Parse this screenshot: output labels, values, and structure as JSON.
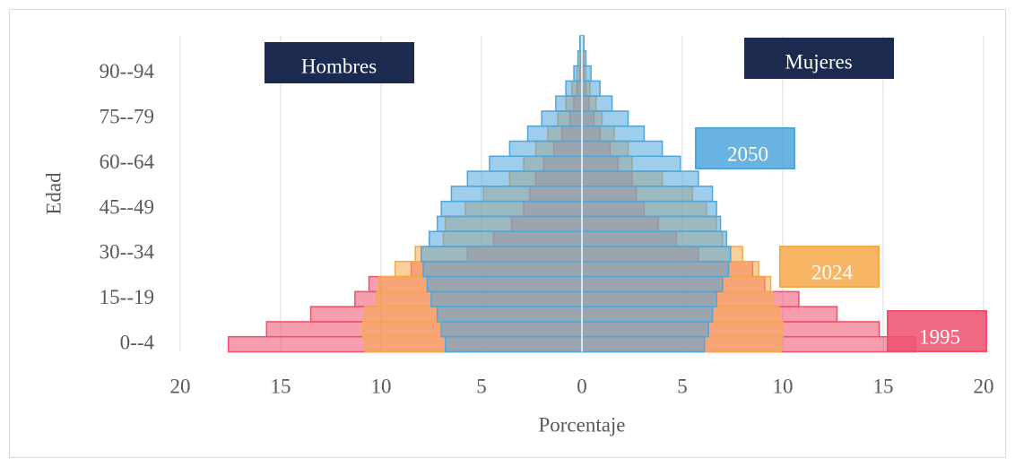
{
  "chart_data": {
    "type": "pyramid",
    "groups": [
      "Hombres",
      "Mujeres"
    ],
    "x_label": "Porcentaje",
    "y_label": "Edad",
    "categories": [
      "0--4",
      null,
      null,
      "15--19",
      null,
      null,
      "30--34",
      null,
      null,
      "45--49",
      null,
      null,
      "60--64",
      null,
      null,
      "75--79",
      null,
      null,
      "90--94",
      null,
      null
    ],
    "series": [
      {
        "name": "1995",
        "color": "#ef4f6c",
        "values": [
          -17.6,
          -15.7,
          -13.5,
          -11.3,
          -10.6,
          -8.5,
          -5.7,
          -4.4,
          -3.5,
          -2.9,
          -2.6,
          -2.3,
          -1.9,
          -1.4,
          -1.0,
          -0.6,
          -0.4,
          -0.25,
          -0.1,
          -0.05,
          0
        ],
        "values_mujeres": [
          16.6,
          14.8,
          12.7,
          10.8,
          9.1,
          8.5,
          5.8,
          4.7,
          3.8,
          3.1,
          2.7,
          2.5,
          1.8,
          1.4,
          0.9,
          0.6,
          0.35,
          0.2,
          0.1,
          0.05,
          0
        ]
      },
      {
        "name": "2024",
        "color": "#f7a94a",
        "values": [
          -10.8,
          -10.9,
          -10.8,
          -10.2,
          -10.1,
          -9.3,
          -8.3,
          -6.9,
          -6.8,
          -5.8,
          -4.9,
          -3.6,
          -2.9,
          -2.3,
          -1.7,
          -1.2,
          -0.8,
          -0.5,
          -0.25,
          -0.1,
          -0.02
        ],
        "values_mujeres": [
          9.9,
          10.0,
          9.8,
          9.5,
          9.4,
          8.8,
          8.0,
          7.0,
          6.7,
          6.2,
          5.5,
          4.0,
          2.5,
          2.3,
          1.6,
          1.0,
          0.7,
          0.4,
          0.2,
          0.1,
          0.02
        ]
      },
      {
        "name": "2050",
        "color": "#4ea6dc",
        "values": [
          -6.8,
          -7.0,
          -7.2,
          -7.5,
          -7.7,
          -7.9,
          -8.0,
          -7.6,
          -7.2,
          -7.0,
          -6.5,
          -5.7,
          -4.6,
          -3.6,
          -2.7,
          -2.0,
          -1.3,
          -0.8,
          -0.4,
          -0.2,
          -0.1
        ],
        "values_mujeres": [
          6.1,
          6.3,
          6.5,
          6.7,
          7.0,
          7.3,
          7.4,
          7.2,
          6.9,
          6.7,
          6.5,
          5.8,
          4.9,
          4.0,
          3.1,
          2.3,
          1.5,
          0.9,
          0.45,
          0.2,
          0.1
        ]
      }
    ],
    "xlim": [
      -20,
      20
    ],
    "xticks": [
      {
        "value": -20,
        "label": "20"
      },
      {
        "value": -15,
        "label": "15"
      },
      {
        "value": -10,
        "label": "10"
      },
      {
        "value": -5,
        "label": "5"
      },
      0,
      5,
      10,
      15,
      20
    ],
    "grid": true
  }
}
